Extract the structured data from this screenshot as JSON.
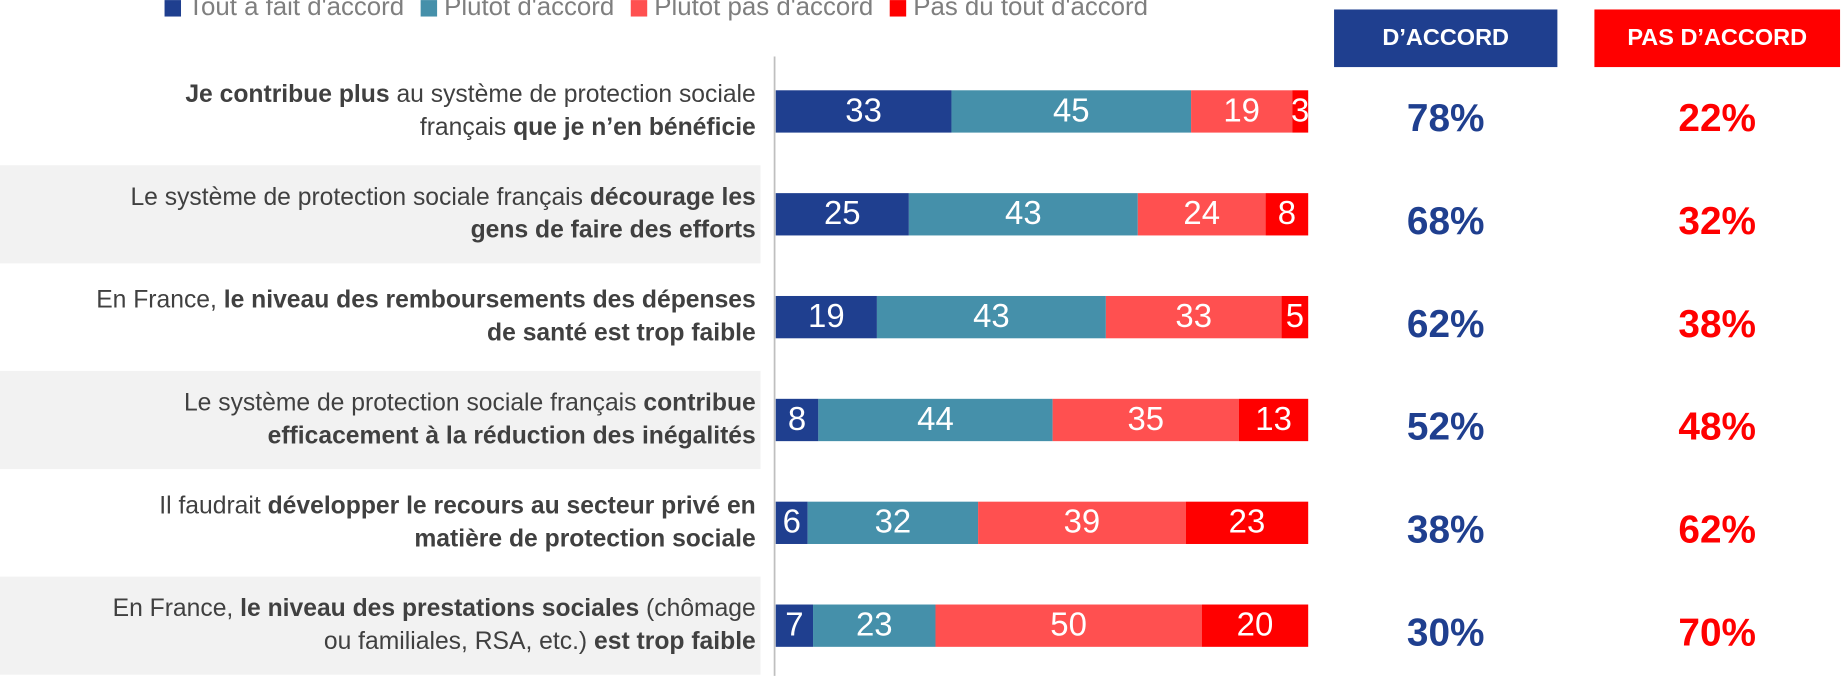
{
  "chart_data": {
    "type": "stacked-bar-horizontal",
    "categories": [
      [
        [
          {
            "text": "Je contribue plus",
            "bold": true
          },
          {
            "text": " au système de protection sociale",
            "bold": false
          }
        ],
        [
          {
            "text": "français ",
            "bold": false
          },
          {
            "text": "que je n’en bénéficie",
            "bold": true
          }
        ]
      ],
      [
        [
          {
            "text": "Le système de protection sociale français ",
            "bold": false
          },
          {
            "text": "décourage les",
            "bold": true
          }
        ],
        [
          {
            "text": "gens de faire des efforts",
            "bold": true
          }
        ]
      ],
      [
        [
          {
            "text": "En France, ",
            "bold": false
          },
          {
            "text": "le niveau des remboursements des dépenses",
            "bold": true
          }
        ],
        [
          {
            "text": "de santé est trop faible",
            "bold": true
          }
        ]
      ],
      [
        [
          {
            "text": "Le système de protection sociale français ",
            "bold": false
          },
          {
            "text": "contribue",
            "bold": true
          }
        ],
        [
          {
            "text": "efficacement à la réduction des inégalités",
            "bold": true
          }
        ]
      ],
      [
        [
          {
            "text": "Il faudrait ",
            "bold": false
          },
          {
            "text": "développer le recours au secteur privé en",
            "bold": true
          }
        ],
        [
          {
            "text": "matière de protection sociale",
            "bold": true
          }
        ]
      ],
      [
        [
          {
            "text": "En France, ",
            "bold": false
          },
          {
            "text": "le niveau des prestations sociales",
            "bold": true
          },
          {
            "text": " (chômage",
            "bold": false
          }
        ],
        [
          {
            "text": "ou familiales, RSA, etc.) ",
            "bold": false
          },
          {
            "text": "est trop faible",
            "bold": true
          }
        ]
      ]
    ],
    "series": [
      {
        "name": "Tout à fait d'accord",
        "color": "#1f3f8f",
        "values": [
          33,
          25,
          19,
          8,
          6,
          7
        ]
      },
      {
        "name": "Plutôt d'accord",
        "color": "#4590aa",
        "values": [
          45,
          43,
          43,
          44,
          32,
          23
        ]
      },
      {
        "name": "Plutôt pas d'accord",
        "color": "#ff5050",
        "values": [
          19,
          24,
          33,
          35,
          39,
          50
        ]
      },
      {
        "name": "Pas du tout d'accord",
        "color": "#ff0000",
        "values": [
          3,
          8,
          5,
          13,
          23,
          20
        ]
      }
    ],
    "xlim": [
      0,
      100
    ],
    "summaries": [
      {
        "title": "D’ACCORD",
        "color": "#1f3f8f",
        "values": [
          78,
          68,
          62,
          52,
          38,
          30
        ],
        "value_labels": [
          "78%",
          "68%",
          "62%",
          "52%",
          "38%",
          "30%"
        ]
      },
      {
        "title": "PAS D’ACCORD",
        "color": "#ff0000",
        "values": [
          22,
          32,
          38,
          48,
          62,
          70
        ],
        "value_labels": [
          "22%",
          "32%",
          "38%",
          "48%",
          "62%",
          "70%"
        ]
      }
    ]
  }
}
